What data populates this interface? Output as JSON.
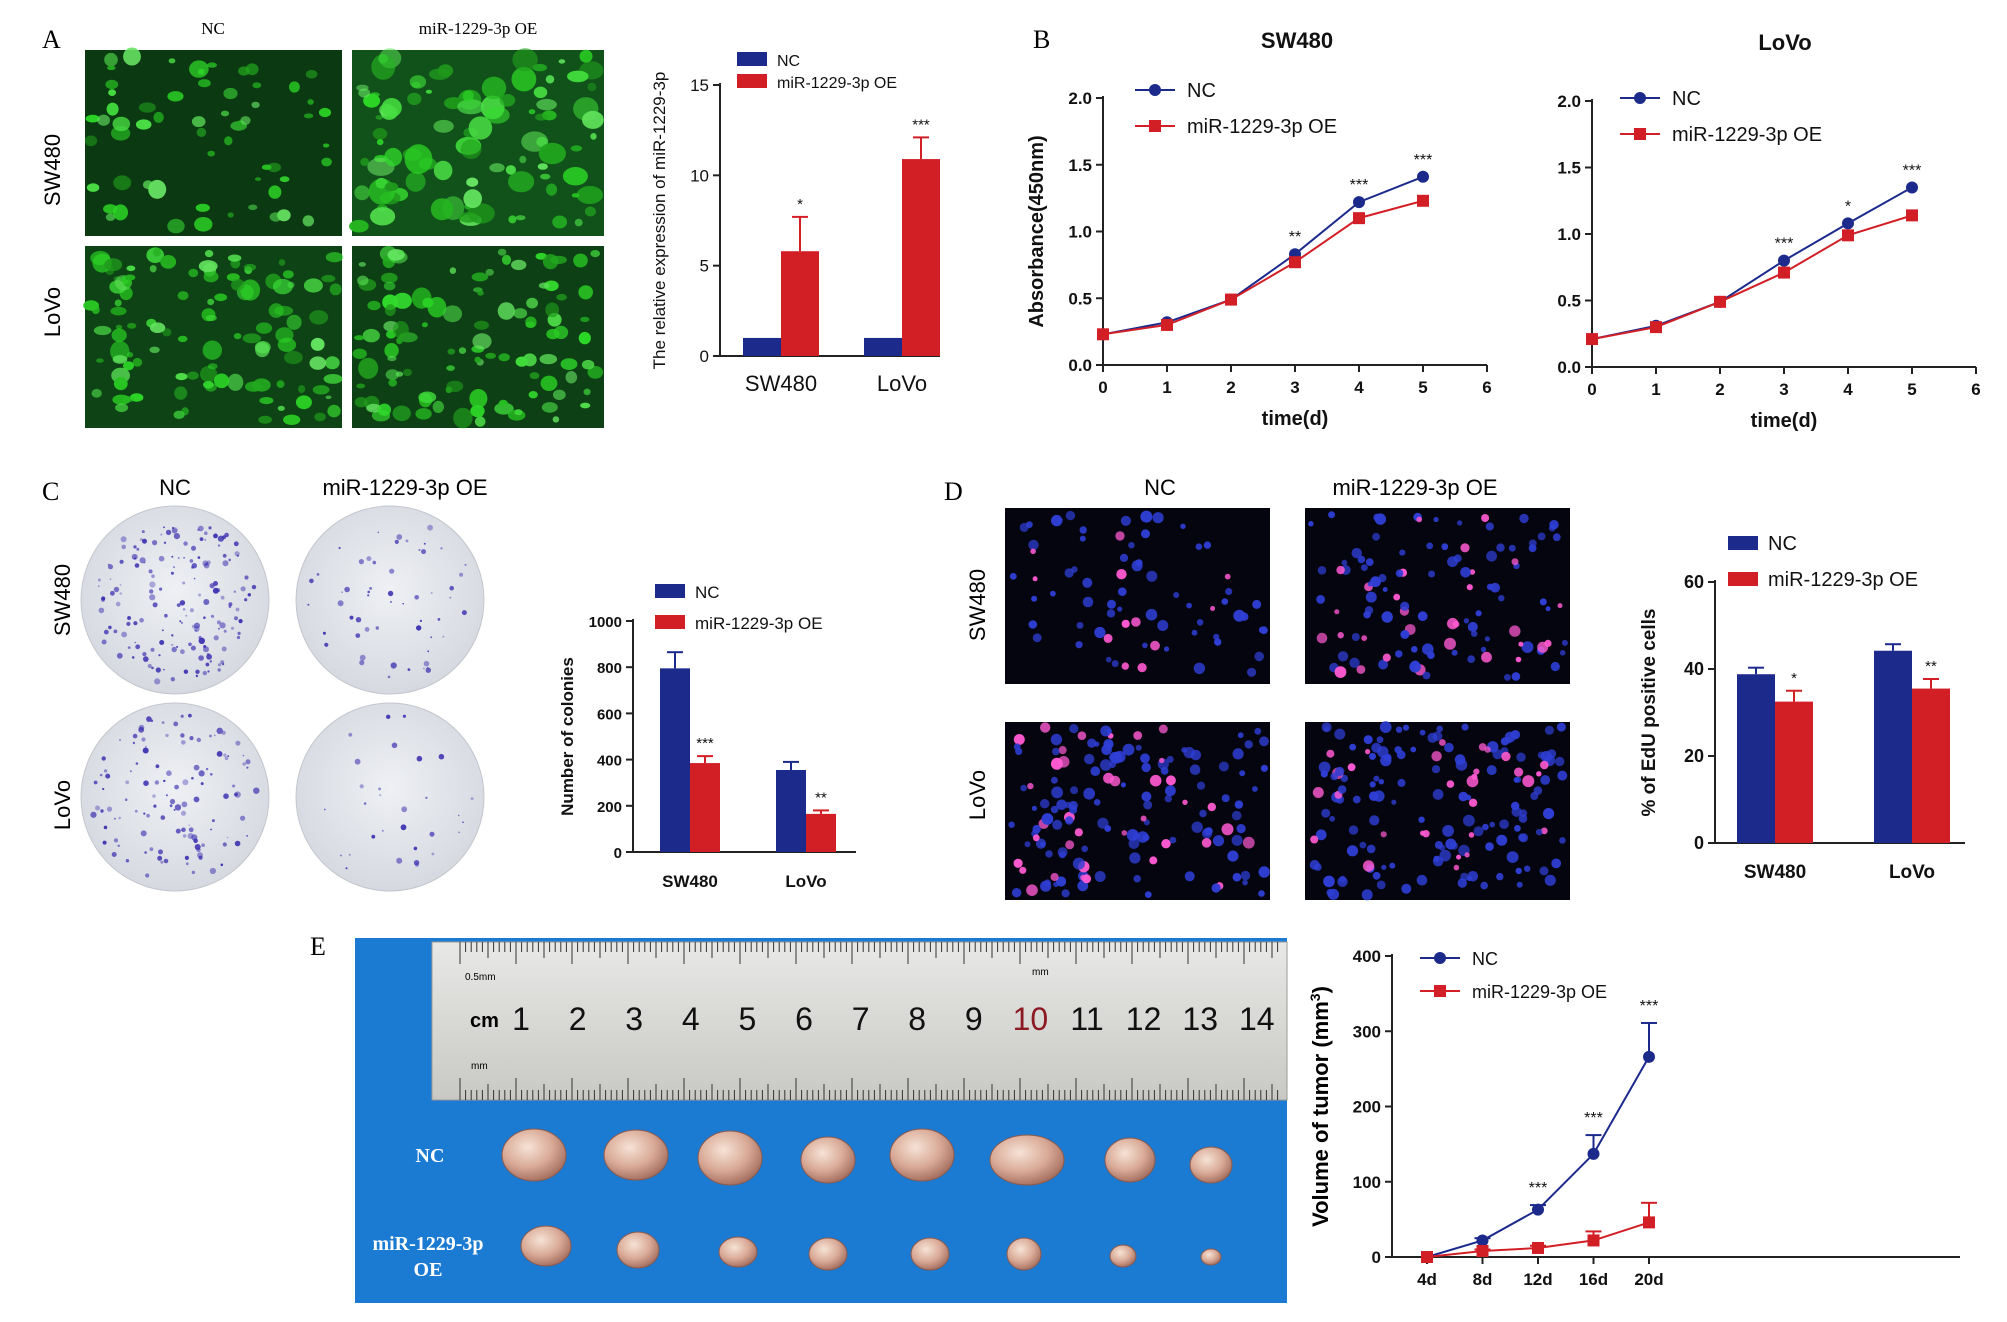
{
  "panel_letters": [
    "A",
    "B",
    "C",
    "D",
    "E"
  ],
  "colors": {
    "nc": "#1c2a8c",
    "oe": "#d21f26",
    "axis": "#222222",
    "green": "#2fb832",
    "stain": "#3a2fb0",
    "ruler_bg": "#1b7ad1"
  },
  "panelA": {
    "col_labels": [
      "NC",
      "miR-1229-3p OE"
    ],
    "row_labels": [
      "SW480",
      "LoVo"
    ]
  },
  "panelC": {
    "col_labels": [
      "NC",
      "miR-1229-3p OE"
    ],
    "row_labels": [
      "SW480",
      "LoVo"
    ]
  },
  "panelD": {
    "col_labels": [
      "NC",
      "miR-1229-3p OE"
    ],
    "row_labels": [
      "SW480",
      "LoVo"
    ]
  },
  "panelE": {
    "ruler_unit": "cm",
    "ruler_numbers": [
      "1",
      "2",
      "3",
      "4",
      "5",
      "6",
      "7",
      "8",
      "9",
      "10",
      "11",
      "12",
      "13",
      "14"
    ],
    "ruler_small_top": "0.5mm",
    "ruler_small_bottom": "mm",
    "ruler_mm_mark": "mm",
    "row_labels": [
      "NC",
      "miR-1229-3p",
      "OE"
    ]
  },
  "chart_data": [
    {
      "id": "A-bar",
      "type": "bar",
      "categories": [
        "SW480",
        "LoVo"
      ],
      "series": [
        {
          "name": "NC",
          "values": [
            1.0,
            1.0
          ]
        },
        {
          "name": "miR-1229-3p  OE",
          "values": [
            5.8,
            10.9
          ],
          "errors": [
            1.9,
            1.2
          ],
          "sig": [
            "*",
            "***"
          ]
        }
      ],
      "ylabel": "The relative expression of miR-1229-3p",
      "ylim": [
        0,
        15
      ],
      "yticks": [
        "0",
        "5",
        "10",
        "15"
      ]
    },
    {
      "id": "B-SW480",
      "type": "line",
      "title": "SW480",
      "x": [
        0,
        1,
        2,
        3,
        4,
        5
      ],
      "series": [
        {
          "name": "NC",
          "values": [
            0.23,
            0.32,
            0.49,
            0.83,
            1.22,
            1.41
          ]
        },
        {
          "name": "miR-1229-3p OE",
          "values": [
            0.23,
            0.3,
            0.49,
            0.77,
            1.1,
            1.23
          ]
        }
      ],
      "sig": [
        "",
        "",
        "",
        "**",
        "***",
        "***"
      ],
      "xlabel": "time(d)",
      "ylabel": "Absorbance(450nm)",
      "xlim": [
        0,
        6
      ],
      "ylim": [
        0,
        2.0
      ],
      "xticks": [
        "0",
        "1",
        "2",
        "3",
        "4",
        "5",
        "6"
      ],
      "yticks": [
        "0.0",
        "0.5",
        "1.0",
        "1.5",
        "2.0"
      ]
    },
    {
      "id": "B-LoVo",
      "type": "line",
      "title": "LoVo",
      "x": [
        0,
        1,
        2,
        3,
        4,
        5
      ],
      "series": [
        {
          "name": "NC",
          "values": [
            0.21,
            0.31,
            0.49,
            0.8,
            1.08,
            1.35
          ]
        },
        {
          "name": "miR-1229-3p OE",
          "values": [
            0.21,
            0.3,
            0.49,
            0.71,
            0.99,
            1.14
          ]
        }
      ],
      "sig": [
        "",
        "",
        "",
        "***",
        "*",
        "***"
      ],
      "xlabel": "time(d)",
      "xlim": [
        0,
        6
      ],
      "ylim": [
        0,
        2.0
      ],
      "xticks": [
        "0",
        "1",
        "2",
        "3",
        "4",
        "5",
        "6"
      ],
      "yticks": [
        "0.0",
        "0.5",
        "1.0",
        "1.5",
        "2.0"
      ]
    },
    {
      "id": "C-bar",
      "type": "bar",
      "categories": [
        "SW480",
        "LoVo"
      ],
      "series": [
        {
          "name": "NC",
          "values": [
            795,
            355
          ],
          "errors": [
            70,
            35
          ]
        },
        {
          "name": "miR-1229-3p OE",
          "values": [
            385,
            165
          ],
          "errors": [
            30,
            15
          ],
          "sig": [
            "***",
            "**"
          ]
        }
      ],
      "ylabel": "Number of colonies",
      "ylim": [
        0,
        1000
      ],
      "yticks": [
        "0",
        "200",
        "400",
        "600",
        "800",
        "1000"
      ]
    },
    {
      "id": "D-bar",
      "type": "bar",
      "categories": [
        "SW480",
        "LoVo"
      ],
      "series": [
        {
          "name": "NC",
          "values": [
            38.8,
            44.2
          ],
          "errors": [
            1.5,
            1.5
          ]
        },
        {
          "name": "miR-1229-3p OE",
          "values": [
            32.5,
            35.5
          ],
          "errors": [
            2.5,
            2.2
          ],
          "sig": [
            "*",
            "**"
          ]
        }
      ],
      "ylabel": "% of EdU positive cells",
      "ylim": [
        0,
        60
      ],
      "yticks": [
        "0",
        "20",
        "40",
        "60"
      ]
    },
    {
      "id": "E-line",
      "type": "line",
      "categories": [
        "4d",
        "8d",
        "12d",
        "16d",
        "20d"
      ],
      "series": [
        {
          "name": "NC",
          "values": [
            0,
            22,
            63,
            137,
            266
          ],
          "errors": [
            0,
            3,
            6,
            25,
            45
          ]
        },
        {
          "name": "miR-1229-3p OE",
          "values": [
            0,
            8,
            12,
            22,
            46
          ],
          "errors": [
            0,
            2,
            3,
            12,
            26
          ]
        }
      ],
      "sig": [
        "",
        "",
        "***",
        "***",
        "***"
      ],
      "ylabel": "Volume of tumor (mm3)",
      "ylim": [
        0,
        400
      ],
      "yticks": [
        "0",
        "100",
        "200",
        "300",
        "400"
      ]
    }
  ]
}
